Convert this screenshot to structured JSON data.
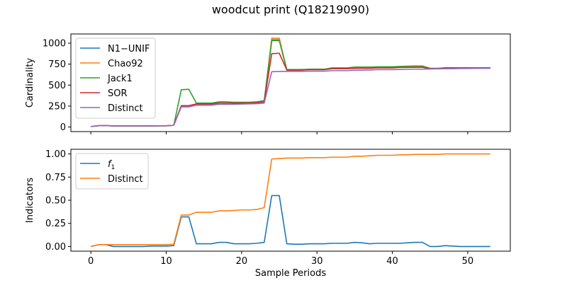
{
  "title": "woodcut print (Q18219090)",
  "chart_data": [
    {
      "type": "line",
      "ylabel": "Cardinality",
      "xlabel": "",
      "xlim": [
        -2.65,
        55.65
      ],
      "ylim": [
        -55,
        1110
      ],
      "xticks": [
        0,
        10,
        20,
        30,
        40,
        50
      ],
      "show_xtick_labels": false,
      "yticks": [
        0,
        250,
        500,
        750,
        1000
      ],
      "grid": false,
      "legend_position": "upper-left",
      "series": [
        {
          "name": "N1−UNIF",
          "color": "#1f77b4",
          "values": [
            5,
            15,
            16,
            13,
            13,
            13,
            13,
            13,
            13,
            14,
            14,
            20,
            250,
            250,
            275,
            275,
            275,
            285,
            285,
            285,
            285,
            285,
            290,
            300,
            1040,
            1040,
            680,
            680,
            680,
            685,
            685,
            685,
            700,
            700,
            700,
            710,
            710,
            710,
            715,
            715,
            715,
            720,
            720,
            720,
            720,
            695,
            695,
            705,
            705,
            705,
            705,
            705,
            705,
            705
          ]
        },
        {
          "name": "Chao92",
          "color": "#ff7f0e",
          "values": [
            5,
            15,
            16,
            13,
            13,
            13,
            13,
            13,
            13,
            14,
            14,
            20,
            250,
            250,
            275,
            275,
            275,
            285,
            285,
            285,
            285,
            285,
            290,
            300,
            1060,
            1060,
            680,
            680,
            680,
            685,
            685,
            685,
            700,
            700,
            700,
            710,
            710,
            710,
            715,
            715,
            715,
            720,
            720,
            720,
            720,
            695,
            695,
            705,
            705,
            705,
            705,
            705,
            705,
            705
          ]
        },
        {
          "name": "Jack1",
          "color": "#2ca02c",
          "values": [
            5,
            15,
            16,
            13,
            13,
            13,
            13,
            13,
            13,
            14,
            14,
            20,
            445,
            450,
            285,
            285,
            285,
            300,
            300,
            295,
            295,
            295,
            300,
            315,
            1030,
            1030,
            685,
            685,
            685,
            690,
            690,
            690,
            705,
            705,
            705,
            715,
            715,
            715,
            718,
            718,
            718,
            722,
            725,
            728,
            728,
            700,
            700,
            705,
            705,
            705,
            705,
            705,
            705,
            705
          ]
        },
        {
          "name": "SOR",
          "color": "#d62728",
          "values": [
            5,
            15,
            16,
            13,
            13,
            13,
            13,
            13,
            13,
            14,
            14,
            20,
            255,
            255,
            275,
            275,
            275,
            285,
            285,
            285,
            285,
            285,
            290,
            300,
            875,
            880,
            680,
            680,
            680,
            685,
            685,
            685,
            695,
            695,
            695,
            700,
            700,
            700,
            705,
            705,
            705,
            710,
            710,
            712,
            712,
            695,
            695,
            705,
            705,
            705,
            705,
            705,
            705,
            705
          ]
        },
        {
          "name": "Distinct",
          "color": "#9467bd",
          "values": [
            5,
            15,
            16,
            13,
            13,
            13,
            13,
            13,
            13,
            14,
            14,
            20,
            240,
            240,
            260,
            260,
            260,
            270,
            270,
            272,
            274,
            276,
            278,
            285,
            660,
            662,
            664,
            664,
            664,
            666,
            666,
            666,
            672,
            672,
            672,
            678,
            678,
            680,
            684,
            684,
            684,
            686,
            688,
            690,
            690,
            692,
            694,
            696,
            696,
            698,
            698,
            700,
            700,
            700
          ]
        }
      ]
    },
    {
      "type": "line",
      "ylabel": "Indicators",
      "xlabel": "Sample Periods",
      "xlim": [
        -2.65,
        55.65
      ],
      "ylim": [
        -0.05,
        1.05
      ],
      "xticks": [
        0,
        10,
        20,
        30,
        40,
        50
      ],
      "show_xtick_labels": true,
      "yticks": [
        0.0,
        0.25,
        0.5,
        0.75,
        1.0
      ],
      "ytick_labels": [
        "0.00",
        "0.25",
        "0.50",
        "0.75",
        "1.00"
      ],
      "grid": false,
      "legend_position": "upper-left",
      "series": [
        {
          "name": "f1",
          "color": "#1f77b4",
          "values": [
            0.0,
            0.02,
            0.02,
            0.0,
            0.0,
            0.0,
            0.0,
            0.0,
            0.005,
            0.005,
            0.005,
            0.01,
            0.32,
            0.32,
            0.03,
            0.03,
            0.03,
            0.045,
            0.045,
            0.03,
            0.03,
            0.03,
            0.035,
            0.045,
            0.55,
            0.55,
            0.03,
            0.025,
            0.025,
            0.03,
            0.03,
            0.03,
            0.035,
            0.035,
            0.035,
            0.045,
            0.04,
            0.03,
            0.035,
            0.035,
            0.035,
            0.035,
            0.04,
            0.045,
            0.045,
            0.0,
            0.0,
            0.01,
            0.005,
            0.0,
            0.0,
            0.0,
            0.0,
            0.0
          ]
        },
        {
          "name": "Distinct",
          "color": "#ff7f0e",
          "values": [
            0.0,
            0.02,
            0.02,
            0.02,
            0.02,
            0.02,
            0.02,
            0.02,
            0.02,
            0.02,
            0.02,
            0.025,
            0.34,
            0.34,
            0.37,
            0.37,
            0.37,
            0.385,
            0.385,
            0.39,
            0.395,
            0.395,
            0.4,
            0.42,
            0.945,
            0.95,
            0.955,
            0.955,
            0.955,
            0.96,
            0.96,
            0.96,
            0.965,
            0.965,
            0.965,
            0.975,
            0.975,
            0.98,
            0.985,
            0.985,
            0.985,
            0.99,
            0.99,
            0.995,
            0.995,
            0.995,
            0.995,
            1.0,
            1.0,
            1.0,
            1.0,
            1.0,
            1.0,
            1.0
          ]
        }
      ]
    }
  ]
}
